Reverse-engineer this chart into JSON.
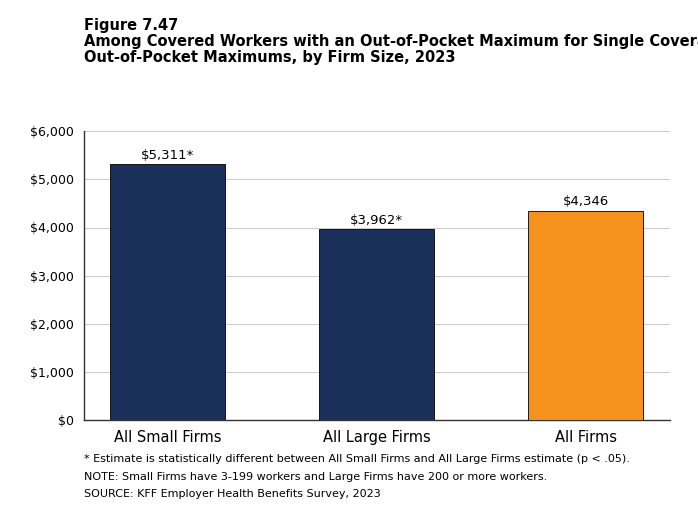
{
  "figure_label": "Figure 7.47",
  "title_line1": "Among Covered Workers with an Out-of-Pocket Maximum for Single Coverage, Average",
  "title_line2": "Out-of-Pocket Maximums, by Firm Size, 2023",
  "categories": [
    "All Small Firms",
    "All Large Firms",
    "All Firms"
  ],
  "values": [
    5311,
    3962,
    4346
  ],
  "bar_colors": [
    "#1b2f5b",
    "#1b2f5b",
    "#f5921e"
  ],
  "bar_labels": [
    "$5,311*",
    "$3,962*",
    "$4,346"
  ],
  "ylim": [
    0,
    6000
  ],
  "yticks": [
    0,
    1000,
    2000,
    3000,
    4000,
    5000,
    6000
  ],
  "ytick_labels": [
    "$0",
    "$1,000",
    "$2,000",
    "$3,000",
    "$4,000",
    "$5,000",
    "$6,000"
  ],
  "background_color": "#ffffff",
  "footnote1": "* Estimate is statistically different between All Small Firms and All Large Firms estimate (p < .05).",
  "footnote2": "NOTE: Small Firms have 3-199 workers and Large Firms have 200 or more workers.",
  "footnote3": "SOURCE: KFF Employer Health Benefits Survey, 2023",
  "figure_label_fontsize": 10.5,
  "title_fontsize": 10.5,
  "bar_label_fontsize": 9.5,
  "tick_fontsize": 9,
  "footnote_fontsize": 8,
  "xticklabel_fontsize": 10.5,
  "bar_width": 0.55
}
